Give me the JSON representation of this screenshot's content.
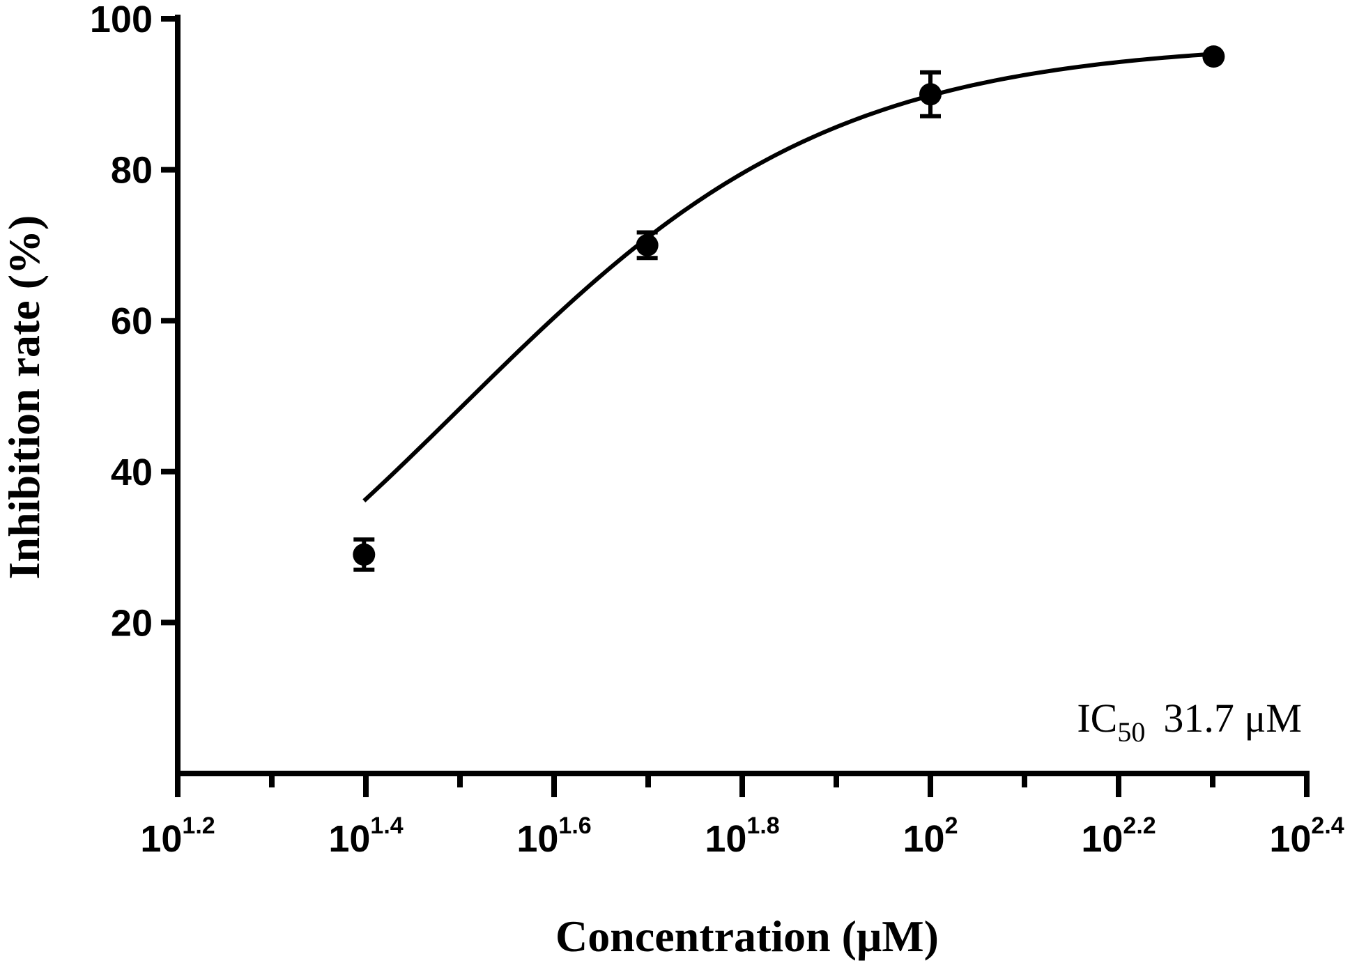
{
  "chart_data": {
    "type": "line",
    "title": "",
    "xlabel": "Concentration (μM)",
    "ylabel": "Inhibition rate (%)",
    "x_scale": "log10",
    "xlim_log10": [
      1.2,
      2.4
    ],
    "ylim": [
      0,
      100
    ],
    "x_ticks": [
      {
        "log10": 1.2,
        "base": "10",
        "exp": "1.2"
      },
      {
        "log10": 1.4,
        "base": "10",
        "exp": "1.4"
      },
      {
        "log10": 1.6,
        "base": "10",
        "exp": "1.6"
      },
      {
        "log10": 1.8,
        "base": "10",
        "exp": "1.8"
      },
      {
        "log10": 2.0,
        "base": "10",
        "exp": "2"
      },
      {
        "log10": 2.2,
        "base": "10",
        "exp": "2.2"
      },
      {
        "log10": 2.4,
        "base": "10",
        "exp": "2.4"
      }
    ],
    "y_ticks": [
      20,
      40,
      60,
      80,
      100
    ],
    "series": [
      {
        "name": "Inhibition",
        "points": [
          {
            "x_log10": 1.398,
            "y": 29.0,
            "err": 2.0
          },
          {
            "x_log10": 1.699,
            "y": 70.0,
            "err": 1.7
          },
          {
            "x_log10": 2.0,
            "y": 90.0,
            "err": 2.9
          },
          {
            "x_log10": 2.301,
            "y": 95.0,
            "err": 0
          }
        ],
        "fit_curve": {
          "model": "four-parameter logistic",
          "bottom": 0,
          "top": 97,
          "log_ic50": 1.501,
          "hill_slope": 2.2,
          "x_range_log10": [
            1.398,
            2.301
          ]
        }
      }
    ],
    "annotation": {
      "prefix": "IC",
      "subscript": "50",
      "value": "31.7 μM"
    }
  }
}
